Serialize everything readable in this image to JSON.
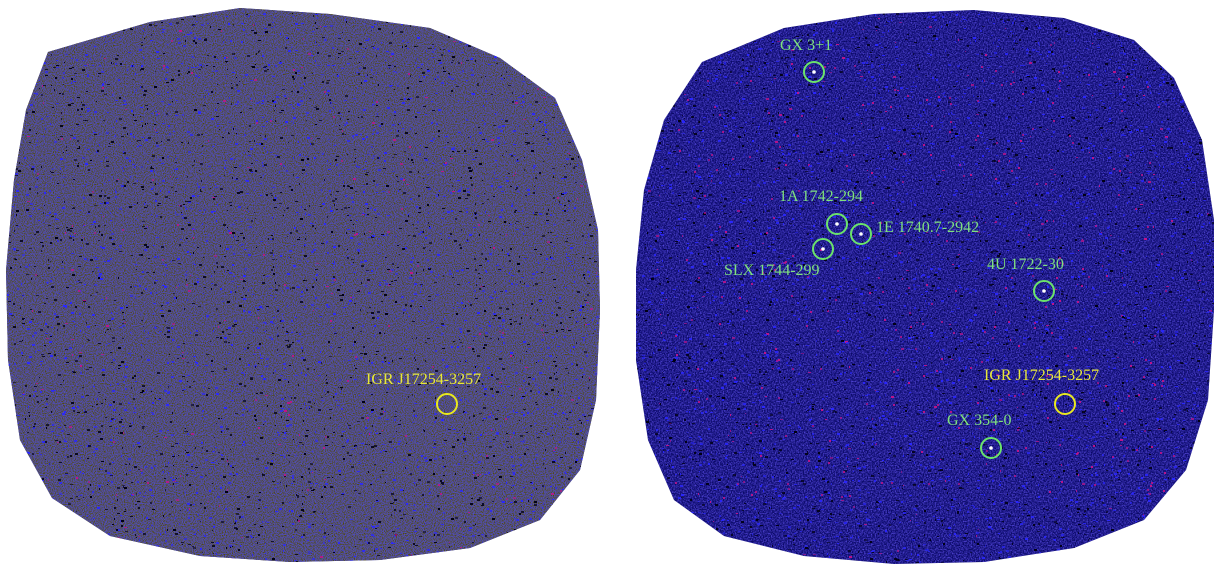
{
  "colors": {
    "background": "#ffffff",
    "sky_base": "#0b0a72",
    "sky_speckle_blue": "#2a27ff",
    "sky_speckle_dark": "#000012",
    "hot_pixel": "#c0148a",
    "source_marker_known": "#6be36b",
    "source_marker_target": "#e8e820",
    "label_known": "#7fe07f",
    "label_target": "#e8e83a"
  },
  "panels": [
    {
      "id": "left",
      "exposure_texture": "faint",
      "sources": [
        {
          "label": "IGR J17254-3257",
          "kind": "target",
          "has_point": false
        }
      ]
    },
    {
      "id": "right",
      "exposure_texture": "deep",
      "sources": [
        {
          "label": "GX 3+1",
          "kind": "known",
          "has_point": true
        },
        {
          "label": "1A 1742-294",
          "kind": "known",
          "has_point": true
        },
        {
          "label": "1E 1740.7-2942",
          "kind": "known",
          "has_point": true
        },
        {
          "label": "SLX 1744-299",
          "kind": "known",
          "has_point": true
        },
        {
          "label": "4U 1722-30",
          "kind": "known",
          "has_point": true
        },
        {
          "label": "IGR J17254-3257",
          "kind": "target",
          "has_point": false
        },
        {
          "label": "GX 354-0",
          "kind": "known",
          "has_point": true
        }
      ]
    }
  ]
}
